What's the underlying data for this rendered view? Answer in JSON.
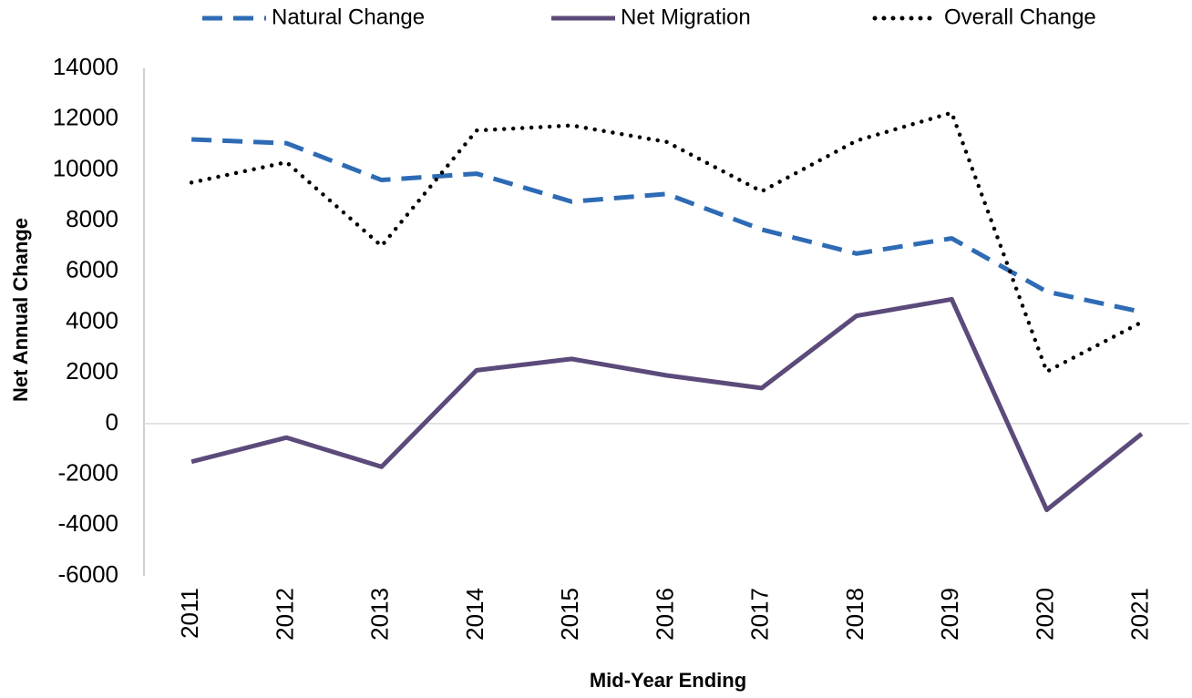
{
  "chart_data": {
    "type": "line",
    "x_label": "Mid-Year Ending",
    "y_label": "Net Annual Change",
    "categories": [
      "2011",
      "2012",
      "2013",
      "2014",
      "2015",
      "2016",
      "2017",
      "2018",
      "2019",
      "2020",
      "2021"
    ],
    "series": [
      {
        "name": "Natural Change",
        "color": "#2e6bb5",
        "style": "dashed",
        "values": [
          11200,
          11050,
          9600,
          9850,
          8750,
          9050,
          7650,
          6700,
          7300,
          5200,
          4400
        ]
      },
      {
        "name": "Net Migration",
        "color": "#5b4a7a",
        "style": "solid",
        "values": [
          -1500,
          -550,
          -1700,
          2100,
          2550,
          1900,
          1400,
          4250,
          4900,
          -3400,
          -400
        ]
      },
      {
        "name": "Overall Change",
        "color": "#000000",
        "style": "dotted",
        "values": [
          9500,
          10300,
          7000,
          11550,
          11750,
          11100,
          9150,
          11150,
          12250,
          2050,
          4000
        ]
      }
    ],
    "ylim": [
      -6000,
      14000
    ],
    "yticks": [
      -6000,
      -4000,
      -2000,
      0,
      2000,
      4000,
      6000,
      8000,
      10000,
      12000,
      14000
    ],
    "legend": "top"
  }
}
